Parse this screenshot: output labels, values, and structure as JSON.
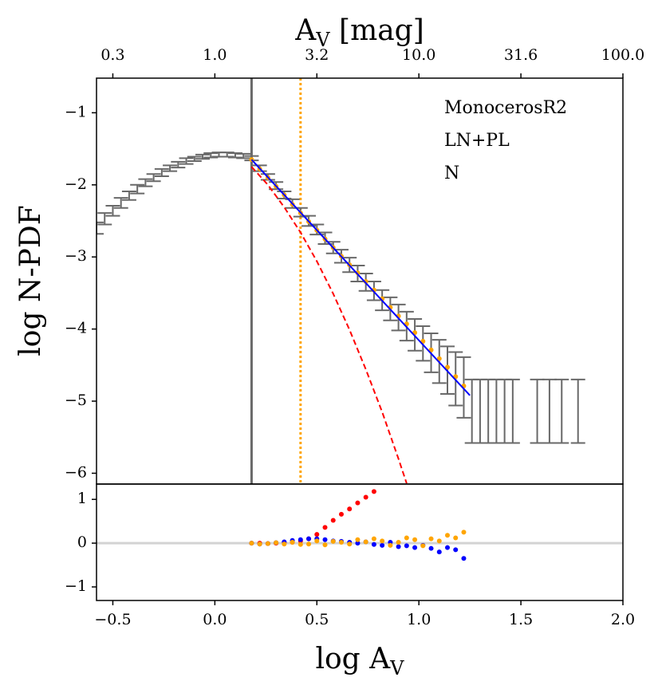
{
  "chart_data": [
    {
      "type": "errorbar",
      "annotations": [
        "MonocerosR2",
        "LN+PL",
        "N"
      ],
      "x2label": [
        "A",
        "V",
        " [mag]"
      ],
      "ylabel": "log N-PDF",
      "xlim": [
        -0.58,
        2.0
      ],
      "ylim": [
        -6.15,
        -0.52
      ],
      "x2ticks": [
        {
          "value": -0.5,
          "label": "0.3"
        },
        {
          "value": 0,
          "label": "1.0"
        },
        {
          "value": 0.5,
          "label": "3.2"
        },
        {
          "value": 1,
          "label": "10.0"
        },
        {
          "value": 1.5,
          "label": "31.6"
        },
        {
          "value": 2,
          "label": "100.0"
        }
      ],
      "yticks": [
        {
          "value": -6,
          "label": "−6"
        },
        {
          "value": -5,
          "label": "−5"
        },
        {
          "value": -4,
          "label": "−4"
        },
        {
          "value": -3,
          "label": "−3"
        },
        {
          "value": -2,
          "label": "−2"
        },
        {
          "value": -1,
          "label": "−1"
        }
      ],
      "vlines": [
        {
          "x": 0.18,
          "color": "#696969",
          "style": "solid"
        },
        {
          "x": 0.42,
          "color": "orange",
          "style": "dotted"
        }
      ],
      "series": [
        {
          "kind": "errorbar",
          "color": "#696969",
          "x": [
            -0.58,
            -0.54,
            -0.5,
            -0.46,
            -0.42,
            -0.38,
            -0.34,
            -0.3,
            -0.26,
            -0.22,
            -0.18,
            -0.14,
            -0.1,
            -0.06,
            -0.02,
            0.02,
            0.06,
            0.1,
            0.14,
            0.18,
            0.22,
            0.26,
            0.3,
            0.34,
            0.38,
            0.42,
            0.46,
            0.5,
            0.54,
            0.58,
            0.62,
            0.66,
            0.7,
            0.74,
            0.78,
            0.82,
            0.86,
            0.9,
            0.94,
            0.98,
            1.02,
            1.06,
            1.1,
            1.14,
            1.18,
            1.22,
            1.26,
            1.3,
            1.34,
            1.38,
            1.42,
            1.46,
            1.58,
            1.64,
            1.7,
            1.78
          ],
          "values": [
            -2.6,
            -2.47,
            -2.36,
            -2.25,
            -2.15,
            -2.06,
            -1.97,
            -1.9,
            -1.83,
            -1.77,
            -1.72,
            -1.67,
            -1.64,
            -1.61,
            -1.59,
            -1.58,
            -1.58,
            -1.59,
            -1.6,
            -1.63,
            -1.77,
            -1.89,
            -2.01,
            -2.14,
            -2.26,
            -2.38,
            -2.5,
            -2.62,
            -2.74,
            -2.87,
            -2.99,
            -3.11,
            -3.23,
            -3.35,
            -3.47,
            -3.6,
            -3.72,
            -3.84,
            -3.96,
            -4.08,
            -4.2,
            -4.33,
            -4.45,
            -4.57,
            -4.69,
            -4.81,
            -5.14,
            -5.14,
            -5.14,
            -5.14,
            -5.14,
            -5.14,
            -5.14,
            -5.14,
            -5.14,
            -5.14
          ],
          "errors": [
            0.08,
            0.08,
            0.07,
            0.07,
            0.06,
            0.06,
            0.05,
            0.05,
            0.05,
            0.04,
            0.04,
            0.04,
            0.03,
            0.03,
            0.03,
            0.03,
            0.03,
            0.03,
            0.03,
            0.03,
            0.04,
            0.04,
            0.05,
            0.05,
            0.06,
            0.06,
            0.07,
            0.07,
            0.08,
            0.08,
            0.09,
            0.1,
            0.11,
            0.12,
            0.13,
            0.14,
            0.16,
            0.18,
            0.2,
            0.22,
            0.24,
            0.27,
            0.3,
            0.33,
            0.37,
            0.42,
            0.44,
            0.44,
            0.44,
            0.44,
            0.44,
            0.44,
            0.44,
            0.44,
            0.44,
            0.44
          ]
        },
        {
          "kind": "points",
          "color": "orange",
          "x": [
            0.18,
            0.22,
            0.26,
            0.3,
            0.34,
            0.38,
            0.42,
            0.46,
            0.5,
            0.54,
            0.58,
            0.62,
            0.66,
            0.7,
            0.74,
            0.78,
            0.82,
            0.86,
            0.9,
            0.94,
            0.98,
            1.02,
            1.06,
            1.1,
            1.14,
            1.18,
            1.22
          ],
          "values": [
            -1.65,
            -1.78,
            -1.9,
            -2.02,
            -2.14,
            -2.27,
            -2.39,
            -2.51,
            -2.63,
            -2.75,
            -2.87,
            -2.99,
            -3.11,
            -3.22,
            -3.34,
            -3.46,
            -3.58,
            -3.7,
            -3.82,
            -3.93,
            -4.05,
            -4.17,
            -4.29,
            -4.41,
            -4.53,
            -4.66,
            -4.79
          ]
        },
        {
          "kind": "dashed",
          "color": "red",
          "x": [
            0.18,
            0.26,
            0.34,
            0.42,
            0.5,
            0.58,
            0.66,
            0.74,
            0.82,
            0.9,
            0.94
          ],
          "values": [
            -1.75,
            -2.0,
            -2.31,
            -2.66,
            -3.06,
            -3.51,
            -4.01,
            -4.56,
            -5.15,
            -5.8,
            -6.14
          ]
        },
        {
          "kind": "line",
          "color": "blue",
          "x": [
            0.18,
            1.25
          ],
          "values": [
            -1.65,
            -4.92
          ]
        }
      ]
    },
    {
      "type": "scatter",
      "xlabel": [
        "log A",
        "V"
      ],
      "xlim": [
        -0.58,
        2.0
      ],
      "ylim": [
        -1.31,
        1.35
      ],
      "xticks": [
        {
          "value": -0.5,
          "label": "−0.5"
        },
        {
          "value": 0,
          "label": "0.0"
        },
        {
          "value": 0.5,
          "label": "0.5"
        },
        {
          "value": 1,
          "label": "1.0"
        },
        {
          "value": 1.5,
          "label": "1.5"
        },
        {
          "value": 2,
          "label": "2.0"
        }
      ],
      "yticks": [
        {
          "value": -1,
          "label": "−1"
        },
        0,
        1
      ],
      "hline": 0,
      "series": [
        {
          "kind": "points",
          "color": "red",
          "x": [
            0.18,
            0.22,
            0.26,
            0.3,
            0.34,
            0.38,
            0.42,
            0.46,
            0.5,
            0.54,
            0.58,
            0.62,
            0.66,
            0.7,
            0.74,
            0.78
          ],
          "values": [
            0,
            0,
            -0.01,
            0,
            0.01,
            0.02,
            0.05,
            0.1,
            0.2,
            0.36,
            0.52,
            0.66,
            0.78,
            0.92,
            1.05,
            1.18
          ]
        },
        {
          "kind": "points",
          "color": "blue",
          "x": [
            0.18,
            0.22,
            0.26,
            0.3,
            0.34,
            0.38,
            0.42,
            0.46,
            0.5,
            0.54,
            0.58,
            0.62,
            0.66,
            0.7,
            0.74,
            0.78,
            0.82,
            0.86,
            0.9,
            0.94,
            0.98,
            1.02,
            1.06,
            1.1,
            1.14,
            1.18,
            1.22
          ],
          "values": [
            0,
            -0.02,
            -0.01,
            0.01,
            0.03,
            0.06,
            0.08,
            0.1,
            0.1,
            0.08,
            0.05,
            0.04,
            0.02,
            0,
            0.03,
            -0.03,
            -0.05,
            0.02,
            -0.08,
            -0.06,
            -0.1,
            -0.05,
            -0.12,
            -0.2,
            -0.1,
            -0.15,
            -0.35
          ]
        },
        {
          "kind": "points",
          "color": "orange",
          "x": [
            0.18,
            0.22,
            0.26,
            0.3,
            0.34,
            0.38,
            0.42,
            0.46,
            0.5,
            0.54,
            0.58,
            0.62,
            0.66,
            0.7,
            0.74,
            0.78,
            0.82,
            0.86,
            0.9,
            0.94,
            0.98,
            1.02,
            1.06,
            1.1,
            1.14,
            1.18,
            1.22
          ],
          "values": [
            0,
            -0.02,
            -0.01,
            0.01,
            -0.02,
            0.02,
            -0.03,
            -0.02,
            0.05,
            -0.04,
            0.04,
            0.02,
            -0.02,
            0.08,
            0.03,
            0.1,
            0.05,
            -0.05,
            0.02,
            0.12,
            0.08,
            -0.06,
            0.1,
            0.05,
            0.18,
            0.12,
            0.25
          ]
        }
      ]
    }
  ]
}
